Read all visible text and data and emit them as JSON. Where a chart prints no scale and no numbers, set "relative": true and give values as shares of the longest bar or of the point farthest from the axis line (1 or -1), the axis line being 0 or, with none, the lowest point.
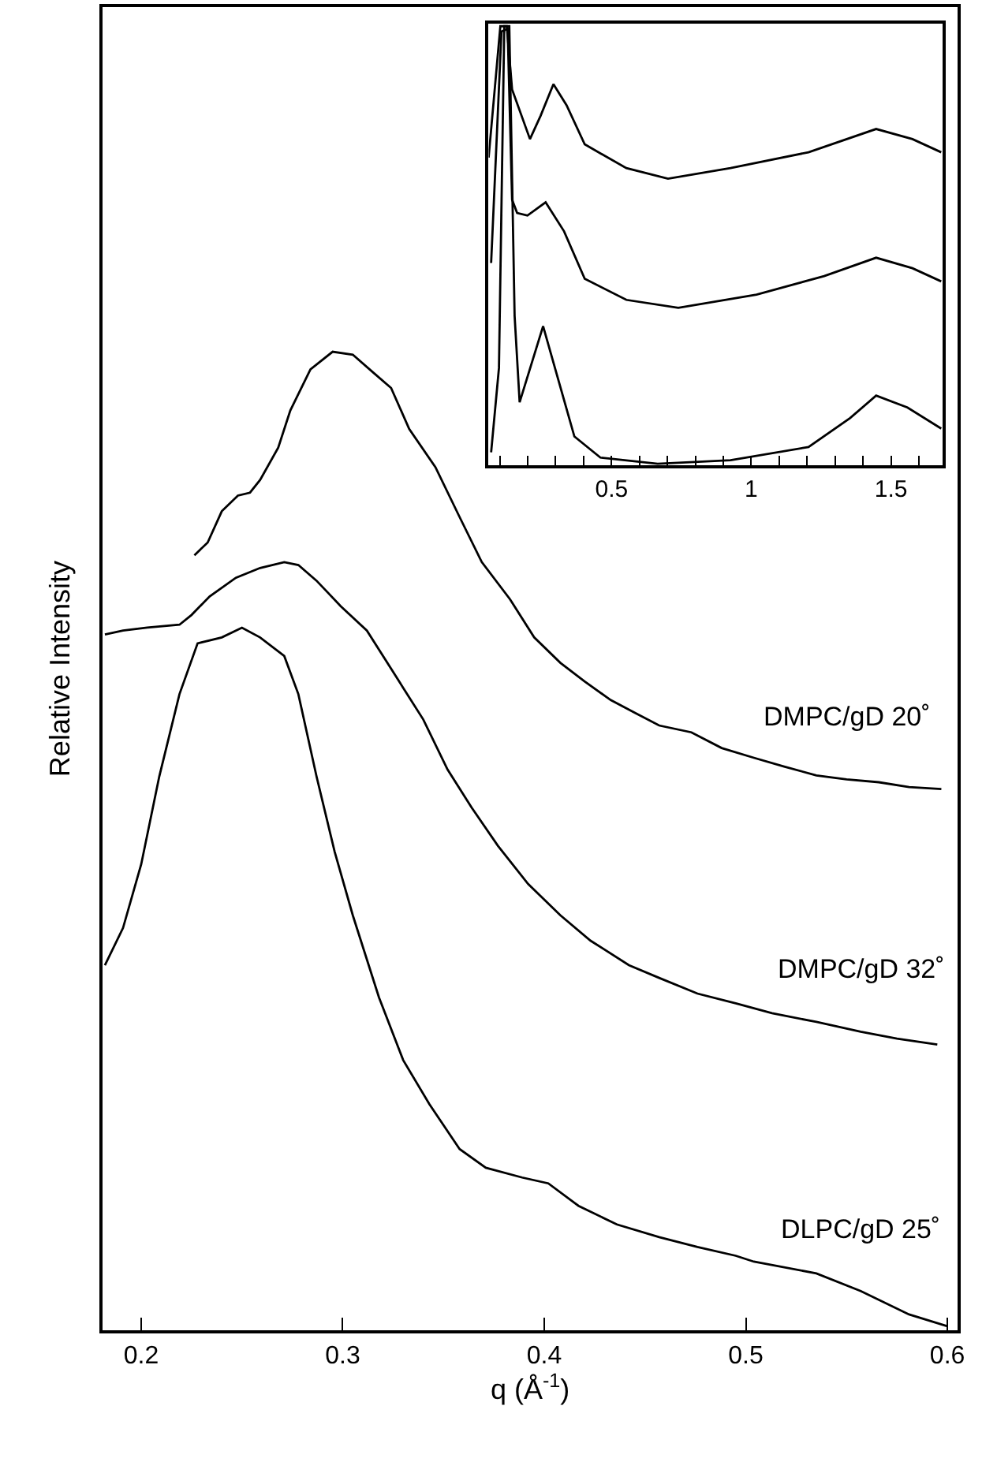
{
  "chart_data": [
    {
      "type": "line",
      "relative": true,
      "xlabel": "q (Å$^{-1}$)",
      "ylabel": "Relative Intensity",
      "xlim": [
        0.181,
        0.605
      ],
      "xticks": [
        0.2,
        0.3,
        0.4,
        0.5,
        0.6
      ],
      "tick_labels": "x",
      "legend": false,
      "marker": "none",
      "line_style": "solid",
      "series": [
        {
          "name": "DMPC/gD 20˚",
          "color": "#000000",
          "x": [
            0.2264,
            0.233,
            0.24,
            0.248,
            0.254,
            0.259,
            0.268,
            0.274,
            0.284,
            0.295,
            0.305,
            0.315,
            0.324,
            0.333,
            0.346,
            0.358,
            0.369,
            0.383,
            0.395,
            0.408,
            0.42,
            0.433,
            0.445,
            0.457,
            0.473,
            0.488,
            0.504,
            0.519,
            0.535,
            0.55,
            0.566,
            0.581,
            0.597
          ],
          "values": [
            0.792,
            0.805,
            0.837,
            0.853,
            0.856,
            0.869,
            0.902,
            0.94,
            0.982,
            1.0,
            0.997,
            0.979,
            0.963,
            0.921,
            0.882,
            0.831,
            0.785,
            0.747,
            0.708,
            0.682,
            0.663,
            0.644,
            0.631,
            0.618,
            0.611,
            0.595,
            0.585,
            0.576,
            0.567,
            0.563,
            0.56,
            0.555,
            0.553
          ]
        },
        {
          "name": "DMPC/gD 32˚",
          "color": "#000000",
          "x": [
            0.182,
            0.191,
            0.203,
            0.219,
            0.225,
            0.234,
            0.247,
            0.259,
            0.271,
            0.278,
            0.287,
            0.299,
            0.312,
            0.324,
            0.34,
            0.352,
            0.364,
            0.377,
            0.392,
            0.408,
            0.423,
            0.442,
            0.457,
            0.476,
            0.495,
            0.513,
            0.535,
            0.557,
            0.575,
            0.595
          ],
          "values": [
            0.711,
            0.715,
            0.718,
            0.721,
            0.731,
            0.75,
            0.769,
            0.779,
            0.785,
            0.782,
            0.766,
            0.74,
            0.715,
            0.676,
            0.624,
            0.573,
            0.534,
            0.495,
            0.456,
            0.424,
            0.398,
            0.373,
            0.36,
            0.344,
            0.334,
            0.324,
            0.315,
            0.305,
            0.298,
            0.292
          ]
        },
        {
          "name": "DLPC/gD 25˚",
          "color": "#000000",
          "x": [
            0.182,
            0.191,
            0.2,
            0.209,
            0.219,
            0.228,
            0.24,
            0.25,
            0.259,
            0.271,
            0.278,
            0.287,
            0.296,
            0.305,
            0.318,
            0.33,
            0.343,
            0.358,
            0.371,
            0.389,
            0.402,
            0.417,
            0.436,
            0.457,
            0.476,
            0.495,
            0.504,
            0.535,
            0.557,
            0.581,
            0.6
          ],
          "values": [
            0.373,
            0.411,
            0.476,
            0.566,
            0.65,
            0.702,
            0.708,
            0.718,
            0.708,
            0.689,
            0.65,
            0.566,
            0.489,
            0.424,
            0.34,
            0.276,
            0.231,
            0.185,
            0.166,
            0.156,
            0.15,
            0.127,
            0.108,
            0.095,
            0.085,
            0.076,
            0.07,
            0.058,
            0.04,
            0.016,
            0.004
          ]
        }
      ]
    },
    {
      "type": "line",
      "relative": true,
      "xlim": [
        0.06,
        1.685
      ],
      "xticks": [
        {
          "value": 0.1,
          "label": null
        },
        {
          "value": 0.2,
          "label": null
        },
        {
          "value": 0.3,
          "label": null
        },
        {
          "value": 0.4,
          "label": null
        },
        0.5,
        {
          "value": 0.6,
          "label": null
        },
        {
          "value": 0.7,
          "label": null
        },
        {
          "value": 0.8,
          "label": null
        },
        {
          "value": 0.9,
          "label": null
        },
        1,
        {
          "value": 1.1,
          "label": null
        },
        {
          "value": 1.2,
          "label": null
        },
        {
          "value": 1.3,
          "label": null
        },
        {
          "value": 1.4,
          "label": null
        },
        1.5,
        {
          "value": 1.6,
          "label": null
        }
      ],
      "tick_labels": "x",
      "legend": false,
      "marker": "none",
      "line_style": "solid",
      "series": [
        {
          "color": "#000000",
          "x": [
            0.06,
            0.102,
            0.125,
            0.144,
            0.208,
            0.246,
            0.292,
            0.339,
            0.404,
            0.553,
            0.702,
            0.926,
            1.205,
            1.447,
            1.577,
            1.68
          ],
          "values": [
            0.701,
            1.0,
            1.0,
            0.856,
            0.743,
            0.796,
            0.868,
            0.82,
            0.731,
            0.677,
            0.653,
            0.677,
            0.713,
            0.766,
            0.743,
            0.713
          ]
        },
        {
          "color": "#000000",
          "x": [
            0.069,
            0.106,
            0.128,
            0.144,
            0.162,
            0.199,
            0.264,
            0.33,
            0.404,
            0.553,
            0.739,
            1.019,
            1.261,
            1.447,
            1.577,
            1.68
          ],
          "values": [
            0.461,
            0.988,
            0.994,
            0.605,
            0.575,
            0.569,
            0.599,
            0.533,
            0.425,
            0.377,
            0.359,
            0.389,
            0.431,
            0.473,
            0.449,
            0.419
          ]
        },
        {
          "color": "#000000",
          "x": [
            0.069,
            0.097,
            0.116,
            0.134,
            0.153,
            0.171,
            0.255,
            0.367,
            0.46,
            0.665,
            0.926,
            1.205,
            1.354,
            1.447,
            1.559,
            1.68
          ],
          "values": [
            0.03,
            0.222,
            1.0,
            1.0,
            0.341,
            0.144,
            0.317,
            0.066,
            0.018,
            0.004,
            0.012,
            0.042,
            0.108,
            0.159,
            0.132,
            0.084
          ]
        }
      ]
    }
  ]
}
